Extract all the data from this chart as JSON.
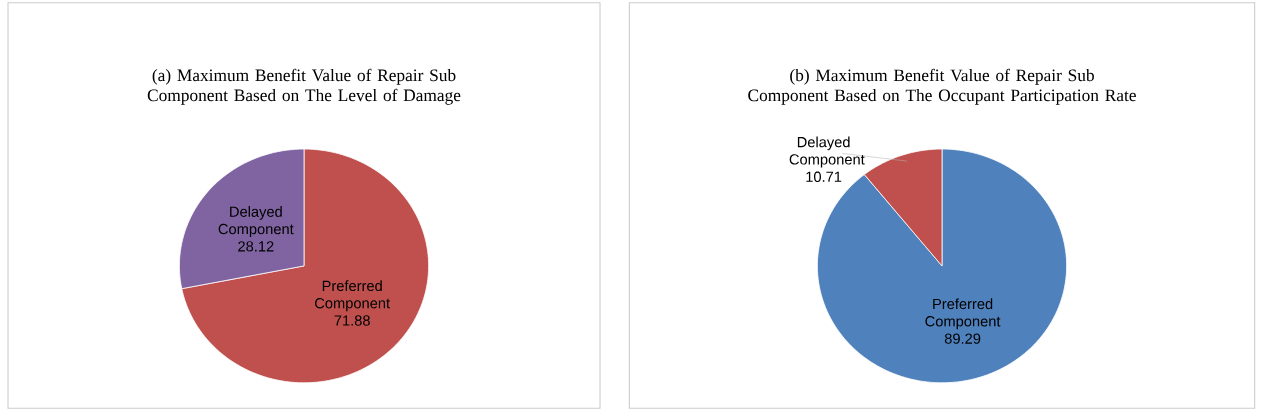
{
  "chart_data": [
    {
      "type": "pie",
      "title": "(a) Maximum  Benefit Value of Repair Sub Component Based on The Level of Damage",
      "categories": [
        "Preferred Component",
        "Delayed Component"
      ],
      "values": [
        71.88,
        28.12
      ],
      "colors": [
        "#c0504d",
        "#8064a2"
      ],
      "data_labels": true
    },
    {
      "type": "pie",
      "title": "(b) Maximum Benefit Value of Repair Sub Component Based on The Occupant Participation Rate",
      "categories": [
        "Preferred Component",
        "Delayed Component"
      ],
      "values": [
        89.29,
        10.71
      ],
      "colors": [
        "#4f81bd",
        "#c0504d"
      ],
      "data_labels": true
    }
  ]
}
